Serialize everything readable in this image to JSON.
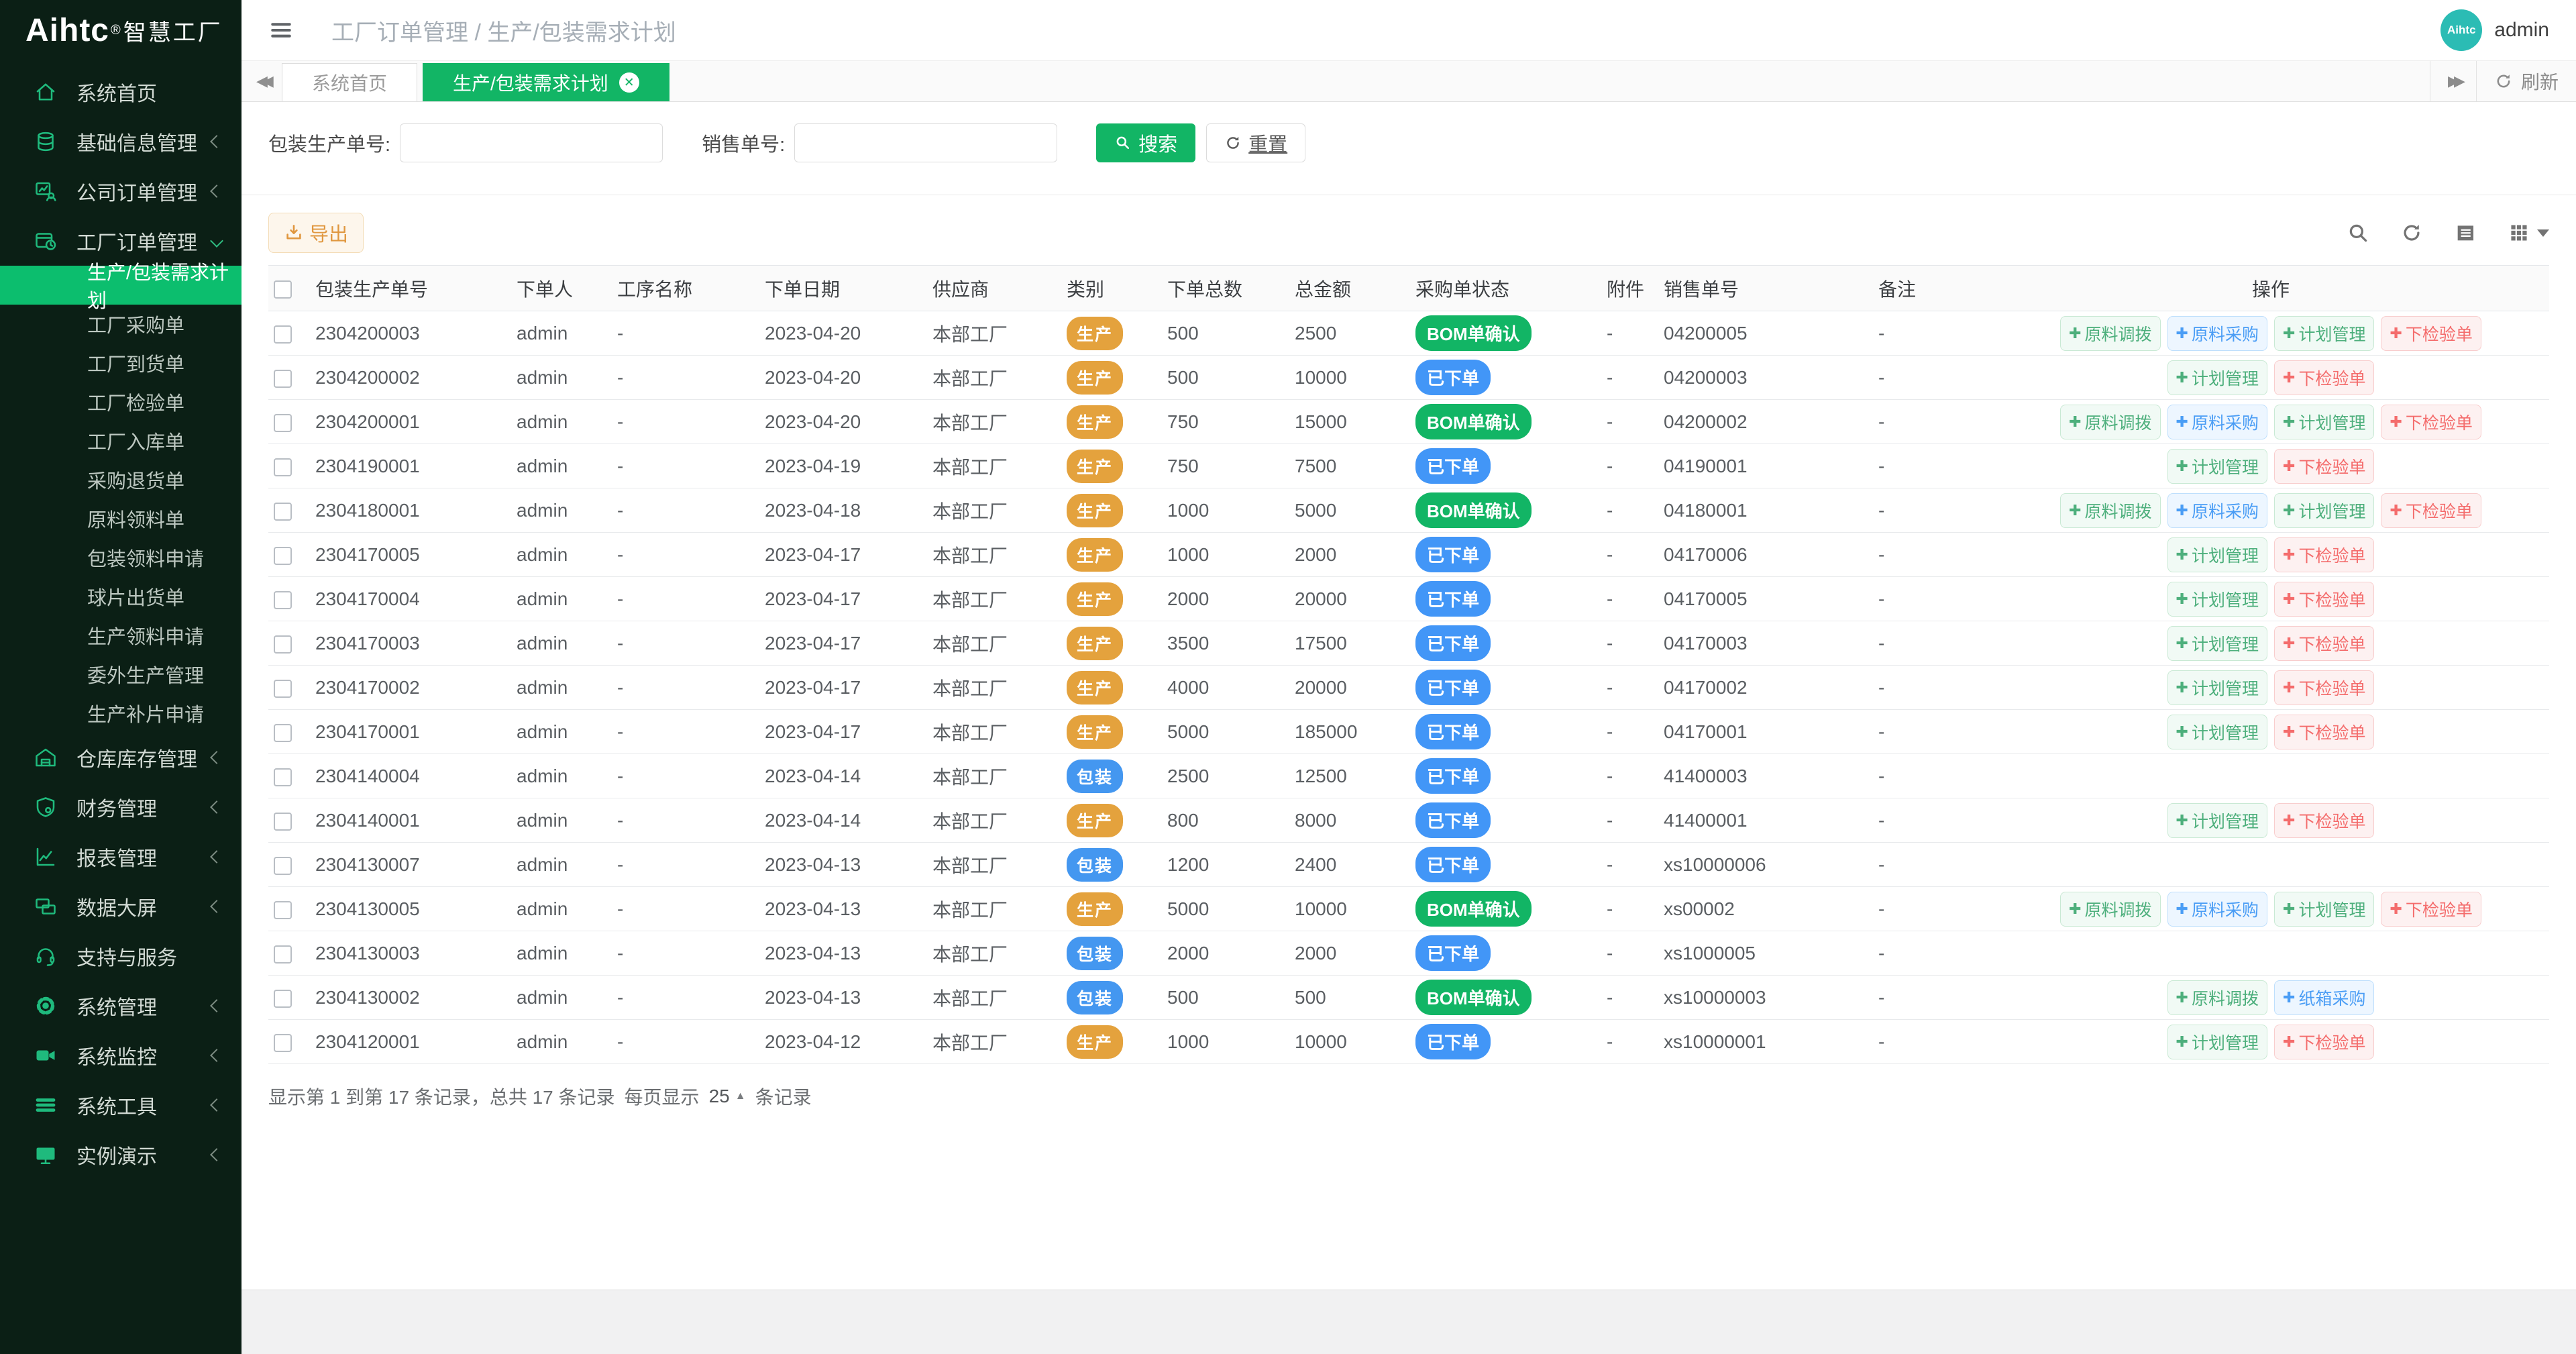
{
  "logo": {
    "brand": "Aihtc",
    "reg": "®",
    "suffix": "智慧工厂"
  },
  "header": {
    "breadcrumb": "工厂订单管理 / 生产/包装需求计划",
    "user_name": "admin",
    "avatar_text": "Aihtc"
  },
  "tabs": {
    "items": [
      {
        "label": "系统首页",
        "active": false
      },
      {
        "label": "生产/包装需求计划",
        "active": true
      }
    ],
    "refresh_label": "刷新"
  },
  "sidebar": {
    "items": [
      {
        "icon": "home-icon",
        "label": "系统首页"
      },
      {
        "icon": "database-icon",
        "label": "基础信息管理",
        "arrow": "left"
      },
      {
        "icon": "company-orders-icon",
        "label": "公司订单管理",
        "arrow": "left"
      },
      {
        "icon": "factory-orders-icon",
        "label": "工厂订单管理",
        "arrow": "down",
        "children": [
          {
            "label": "生产/包装需求计划",
            "active": true
          },
          {
            "label": "工厂采购单"
          },
          {
            "label": "工厂到货单"
          },
          {
            "label": "工厂检验单"
          },
          {
            "label": "工厂入库单"
          },
          {
            "label": "采购退货单"
          },
          {
            "label": "原料领料单"
          },
          {
            "label": "包装领料申请"
          },
          {
            "label": "球片出货单"
          },
          {
            "label": "生产领料申请"
          },
          {
            "label": "委外生产管理"
          },
          {
            "label": "生产补片申请"
          }
        ]
      },
      {
        "icon": "warehouse-icon",
        "label": "仓库库存管理",
        "arrow": "left"
      },
      {
        "icon": "finance-shield-icon",
        "label": "财务管理",
        "arrow": "left"
      },
      {
        "icon": "report-chart-icon",
        "label": "报表管理",
        "arrow": "left"
      },
      {
        "icon": "data-screen-icon",
        "label": "数据大屏",
        "arrow": "left"
      },
      {
        "icon": "support-headset-icon",
        "label": "支持与服务"
      },
      {
        "icon": "gear-icon",
        "label": "系统管理",
        "arrow": "left"
      },
      {
        "icon": "monitor-camera-icon",
        "label": "系统监控",
        "arrow": "left"
      },
      {
        "icon": "tools-bars-icon",
        "label": "系统工具",
        "arrow": "left"
      },
      {
        "icon": "demo-monitor-icon",
        "label": "实例演示",
        "arrow": "left"
      }
    ]
  },
  "search": {
    "order_label": "包装生产单号:",
    "sales_label": "销售单号:",
    "search_label": "搜索",
    "reset_label": "重置"
  },
  "toolbar": {
    "export_label": "导出"
  },
  "table": {
    "columns": [
      "包装生产单号",
      "下单人",
      "工序名称",
      "下单日期",
      "供应商",
      "类别",
      "下单总数",
      "总金额",
      "采购单状态",
      "附件",
      "销售单号",
      "备注",
      "操作"
    ],
    "rows": [
      {
        "order_no": "2304200003",
        "orderer": "admin",
        "process": "-",
        "date": "2023-04-20",
        "supplier": "本部工厂",
        "category": {
          "label": "生产",
          "style": "orange"
        },
        "qty": "500",
        "amount": "2500",
        "status": {
          "label": "BOM单确认",
          "style": "green"
        },
        "attachment": "-",
        "sales_no": "04200005",
        "remark": "-",
        "actions": [
          {
            "label": "原料调拨",
            "style": "green"
          },
          {
            "label": "原料采购",
            "style": "blue"
          },
          {
            "label": "计划管理",
            "style": "green"
          },
          {
            "label": "下检验单",
            "style": "red"
          }
        ]
      },
      {
        "order_no": "2304200002",
        "orderer": "admin",
        "process": "-",
        "date": "2023-04-20",
        "supplier": "本部工厂",
        "category": {
          "label": "生产",
          "style": "orange"
        },
        "qty": "500",
        "amount": "10000",
        "status": {
          "label": "已下单",
          "style": "blue"
        },
        "attachment": "-",
        "sales_no": "04200003",
        "remark": "-",
        "actions": [
          {
            "label": "计划管理",
            "style": "green"
          },
          {
            "label": "下检验单",
            "style": "red"
          }
        ]
      },
      {
        "order_no": "2304200001",
        "orderer": "admin",
        "process": "-",
        "date": "2023-04-20",
        "supplier": "本部工厂",
        "category": {
          "label": "生产",
          "style": "orange"
        },
        "qty": "750",
        "amount": "15000",
        "status": {
          "label": "BOM单确认",
          "style": "green"
        },
        "attachment": "-",
        "sales_no": "04200002",
        "remark": "-",
        "actions": [
          {
            "label": "原料调拨",
            "style": "green"
          },
          {
            "label": "原料采购",
            "style": "blue"
          },
          {
            "label": "计划管理",
            "style": "green"
          },
          {
            "label": "下检验单",
            "style": "red"
          }
        ]
      },
      {
        "order_no": "2304190001",
        "orderer": "admin",
        "process": "-",
        "date": "2023-04-19",
        "supplier": "本部工厂",
        "category": {
          "label": "生产",
          "style": "orange"
        },
        "qty": "750",
        "amount": "7500",
        "status": {
          "label": "已下单",
          "style": "blue"
        },
        "attachment": "-",
        "sales_no": "04190001",
        "remark": "-",
        "actions": [
          {
            "label": "计划管理",
            "style": "green"
          },
          {
            "label": "下检验单",
            "style": "red"
          }
        ]
      },
      {
        "order_no": "2304180001",
        "orderer": "admin",
        "process": "-",
        "date": "2023-04-18",
        "supplier": "本部工厂",
        "category": {
          "label": "生产",
          "style": "orange"
        },
        "qty": "1000",
        "amount": "5000",
        "status": {
          "label": "BOM单确认",
          "style": "green"
        },
        "attachment": "-",
        "sales_no": "04180001",
        "remark": "-",
        "actions": [
          {
            "label": "原料调拨",
            "style": "green"
          },
          {
            "label": "原料采购",
            "style": "blue"
          },
          {
            "label": "计划管理",
            "style": "green"
          },
          {
            "label": "下检验单",
            "style": "red"
          }
        ]
      },
      {
        "order_no": "2304170005",
        "orderer": "admin",
        "process": "-",
        "date": "2023-04-17",
        "supplier": "本部工厂",
        "category": {
          "label": "生产",
          "style": "orange"
        },
        "qty": "1000",
        "amount": "2000",
        "status": {
          "label": "已下单",
          "style": "blue"
        },
        "attachment": "-",
        "sales_no": "04170006",
        "remark": "-",
        "actions": [
          {
            "label": "计划管理",
            "style": "green"
          },
          {
            "label": "下检验单",
            "style": "red"
          }
        ]
      },
      {
        "order_no": "2304170004",
        "orderer": "admin",
        "process": "-",
        "date": "2023-04-17",
        "supplier": "本部工厂",
        "category": {
          "label": "生产",
          "style": "orange"
        },
        "qty": "2000",
        "amount": "20000",
        "status": {
          "label": "已下单",
          "style": "blue"
        },
        "attachment": "-",
        "sales_no": "04170005",
        "remark": "-",
        "actions": [
          {
            "label": "计划管理",
            "style": "green"
          },
          {
            "label": "下检验单",
            "style": "red"
          }
        ]
      },
      {
        "order_no": "2304170003",
        "orderer": "admin",
        "process": "-",
        "date": "2023-04-17",
        "supplier": "本部工厂",
        "category": {
          "label": "生产",
          "style": "orange"
        },
        "qty": "3500",
        "amount": "17500",
        "status": {
          "label": "已下单",
          "style": "blue"
        },
        "attachment": "-",
        "sales_no": "04170003",
        "remark": "-",
        "actions": [
          {
            "label": "计划管理",
            "style": "green"
          },
          {
            "label": "下检验单",
            "style": "red"
          }
        ]
      },
      {
        "order_no": "2304170002",
        "orderer": "admin",
        "process": "-",
        "date": "2023-04-17",
        "supplier": "本部工厂",
        "category": {
          "label": "生产",
          "style": "orange"
        },
        "qty": "4000",
        "amount": "20000",
        "status": {
          "label": "已下单",
          "style": "blue"
        },
        "attachment": "-",
        "sales_no": "04170002",
        "remark": "-",
        "actions": [
          {
            "label": "计划管理",
            "style": "green"
          },
          {
            "label": "下检验单",
            "style": "red"
          }
        ]
      },
      {
        "order_no": "2304170001",
        "orderer": "admin",
        "process": "-",
        "date": "2023-04-17",
        "supplier": "本部工厂",
        "category": {
          "label": "生产",
          "style": "orange"
        },
        "qty": "5000",
        "amount": "185000",
        "status": {
          "label": "已下单",
          "style": "blue"
        },
        "attachment": "-",
        "sales_no": "04170001",
        "remark": "-",
        "actions": [
          {
            "label": "计划管理",
            "style": "green"
          },
          {
            "label": "下检验单",
            "style": "red"
          }
        ]
      },
      {
        "order_no": "2304140004",
        "orderer": "admin",
        "process": "-",
        "date": "2023-04-14",
        "supplier": "本部工厂",
        "category": {
          "label": "包装",
          "style": "blue"
        },
        "qty": "2500",
        "amount": "12500",
        "status": {
          "label": "已下单",
          "style": "blue"
        },
        "attachment": "-",
        "sales_no": "41400003",
        "remark": "-",
        "actions": []
      },
      {
        "order_no": "2304140001",
        "orderer": "admin",
        "process": "-",
        "date": "2023-04-14",
        "supplier": "本部工厂",
        "category": {
          "label": "生产",
          "style": "orange"
        },
        "qty": "800",
        "amount": "8000",
        "status": {
          "label": "已下单",
          "style": "blue"
        },
        "attachment": "-",
        "sales_no": "41400001",
        "remark": "-",
        "actions": [
          {
            "label": "计划管理",
            "style": "green"
          },
          {
            "label": "下检验单",
            "style": "red"
          }
        ]
      },
      {
        "order_no": "2304130007",
        "orderer": "admin",
        "process": "-",
        "date": "2023-04-13",
        "supplier": "本部工厂",
        "category": {
          "label": "包装",
          "style": "blue"
        },
        "qty": "1200",
        "amount": "2400",
        "status": {
          "label": "已下单",
          "style": "blue"
        },
        "attachment": "-",
        "sales_no": "xs10000006",
        "remark": "-",
        "actions": []
      },
      {
        "order_no": "2304130005",
        "orderer": "admin",
        "process": "-",
        "date": "2023-04-13",
        "supplier": "本部工厂",
        "category": {
          "label": "生产",
          "style": "orange"
        },
        "qty": "5000",
        "amount": "10000",
        "status": {
          "label": "BOM单确认",
          "style": "green"
        },
        "attachment": "-",
        "sales_no": "xs00002",
        "remark": "-",
        "actions": [
          {
            "label": "原料调拨",
            "style": "green"
          },
          {
            "label": "原料采购",
            "style": "blue"
          },
          {
            "label": "计划管理",
            "style": "green"
          },
          {
            "label": "下检验单",
            "style": "red"
          }
        ]
      },
      {
        "order_no": "2304130003",
        "orderer": "admin",
        "process": "-",
        "date": "2023-04-13",
        "supplier": "本部工厂",
        "category": {
          "label": "包装",
          "style": "blue"
        },
        "qty": "2000",
        "amount": "2000",
        "status": {
          "label": "已下单",
          "style": "blue"
        },
        "attachment": "-",
        "sales_no": "xs1000005",
        "remark": "-",
        "actions": []
      },
      {
        "order_no": "2304130002",
        "orderer": "admin",
        "process": "-",
        "date": "2023-04-13",
        "supplier": "本部工厂",
        "category": {
          "label": "包装",
          "style": "blue"
        },
        "qty": "500",
        "amount": "500",
        "status": {
          "label": "BOM单确认",
          "style": "green"
        },
        "attachment": "-",
        "sales_no": "xs10000003",
        "remark": "-",
        "actions": [
          {
            "label": "原料调拨",
            "style": "green"
          },
          {
            "label": "纸箱采购",
            "style": "blue"
          }
        ]
      },
      {
        "order_no": "2304120001",
        "orderer": "admin",
        "process": "-",
        "date": "2023-04-12",
        "supplier": "本部工厂",
        "category": {
          "label": "生产",
          "style": "orange"
        },
        "qty": "1000",
        "amount": "10000",
        "status": {
          "label": "已下单",
          "style": "blue"
        },
        "attachment": "-",
        "sales_no": "xs10000001",
        "remark": "-",
        "actions": [
          {
            "label": "计划管理",
            "style": "green"
          },
          {
            "label": "下检验单",
            "style": "red"
          }
        ]
      }
    ]
  },
  "pagination": {
    "summary": "显示第 1 到第 17 条记录，总共 17 条记录",
    "per_page_prefix": "每页显示",
    "page_size": "25",
    "per_page_suffix": "条记录"
  },
  "colors": {
    "sidebar_bg": "#0b1f15",
    "primary_green": "#12b565",
    "sidebar_active_green": "#0cbe6e",
    "badge_orange": "#e4a23d",
    "badge_blue": "#4497f0",
    "status_green": "#12b565",
    "status_blue": "#4296f7",
    "avatar_teal": "#2bbcb4",
    "export_orange": "#e0973f"
  }
}
